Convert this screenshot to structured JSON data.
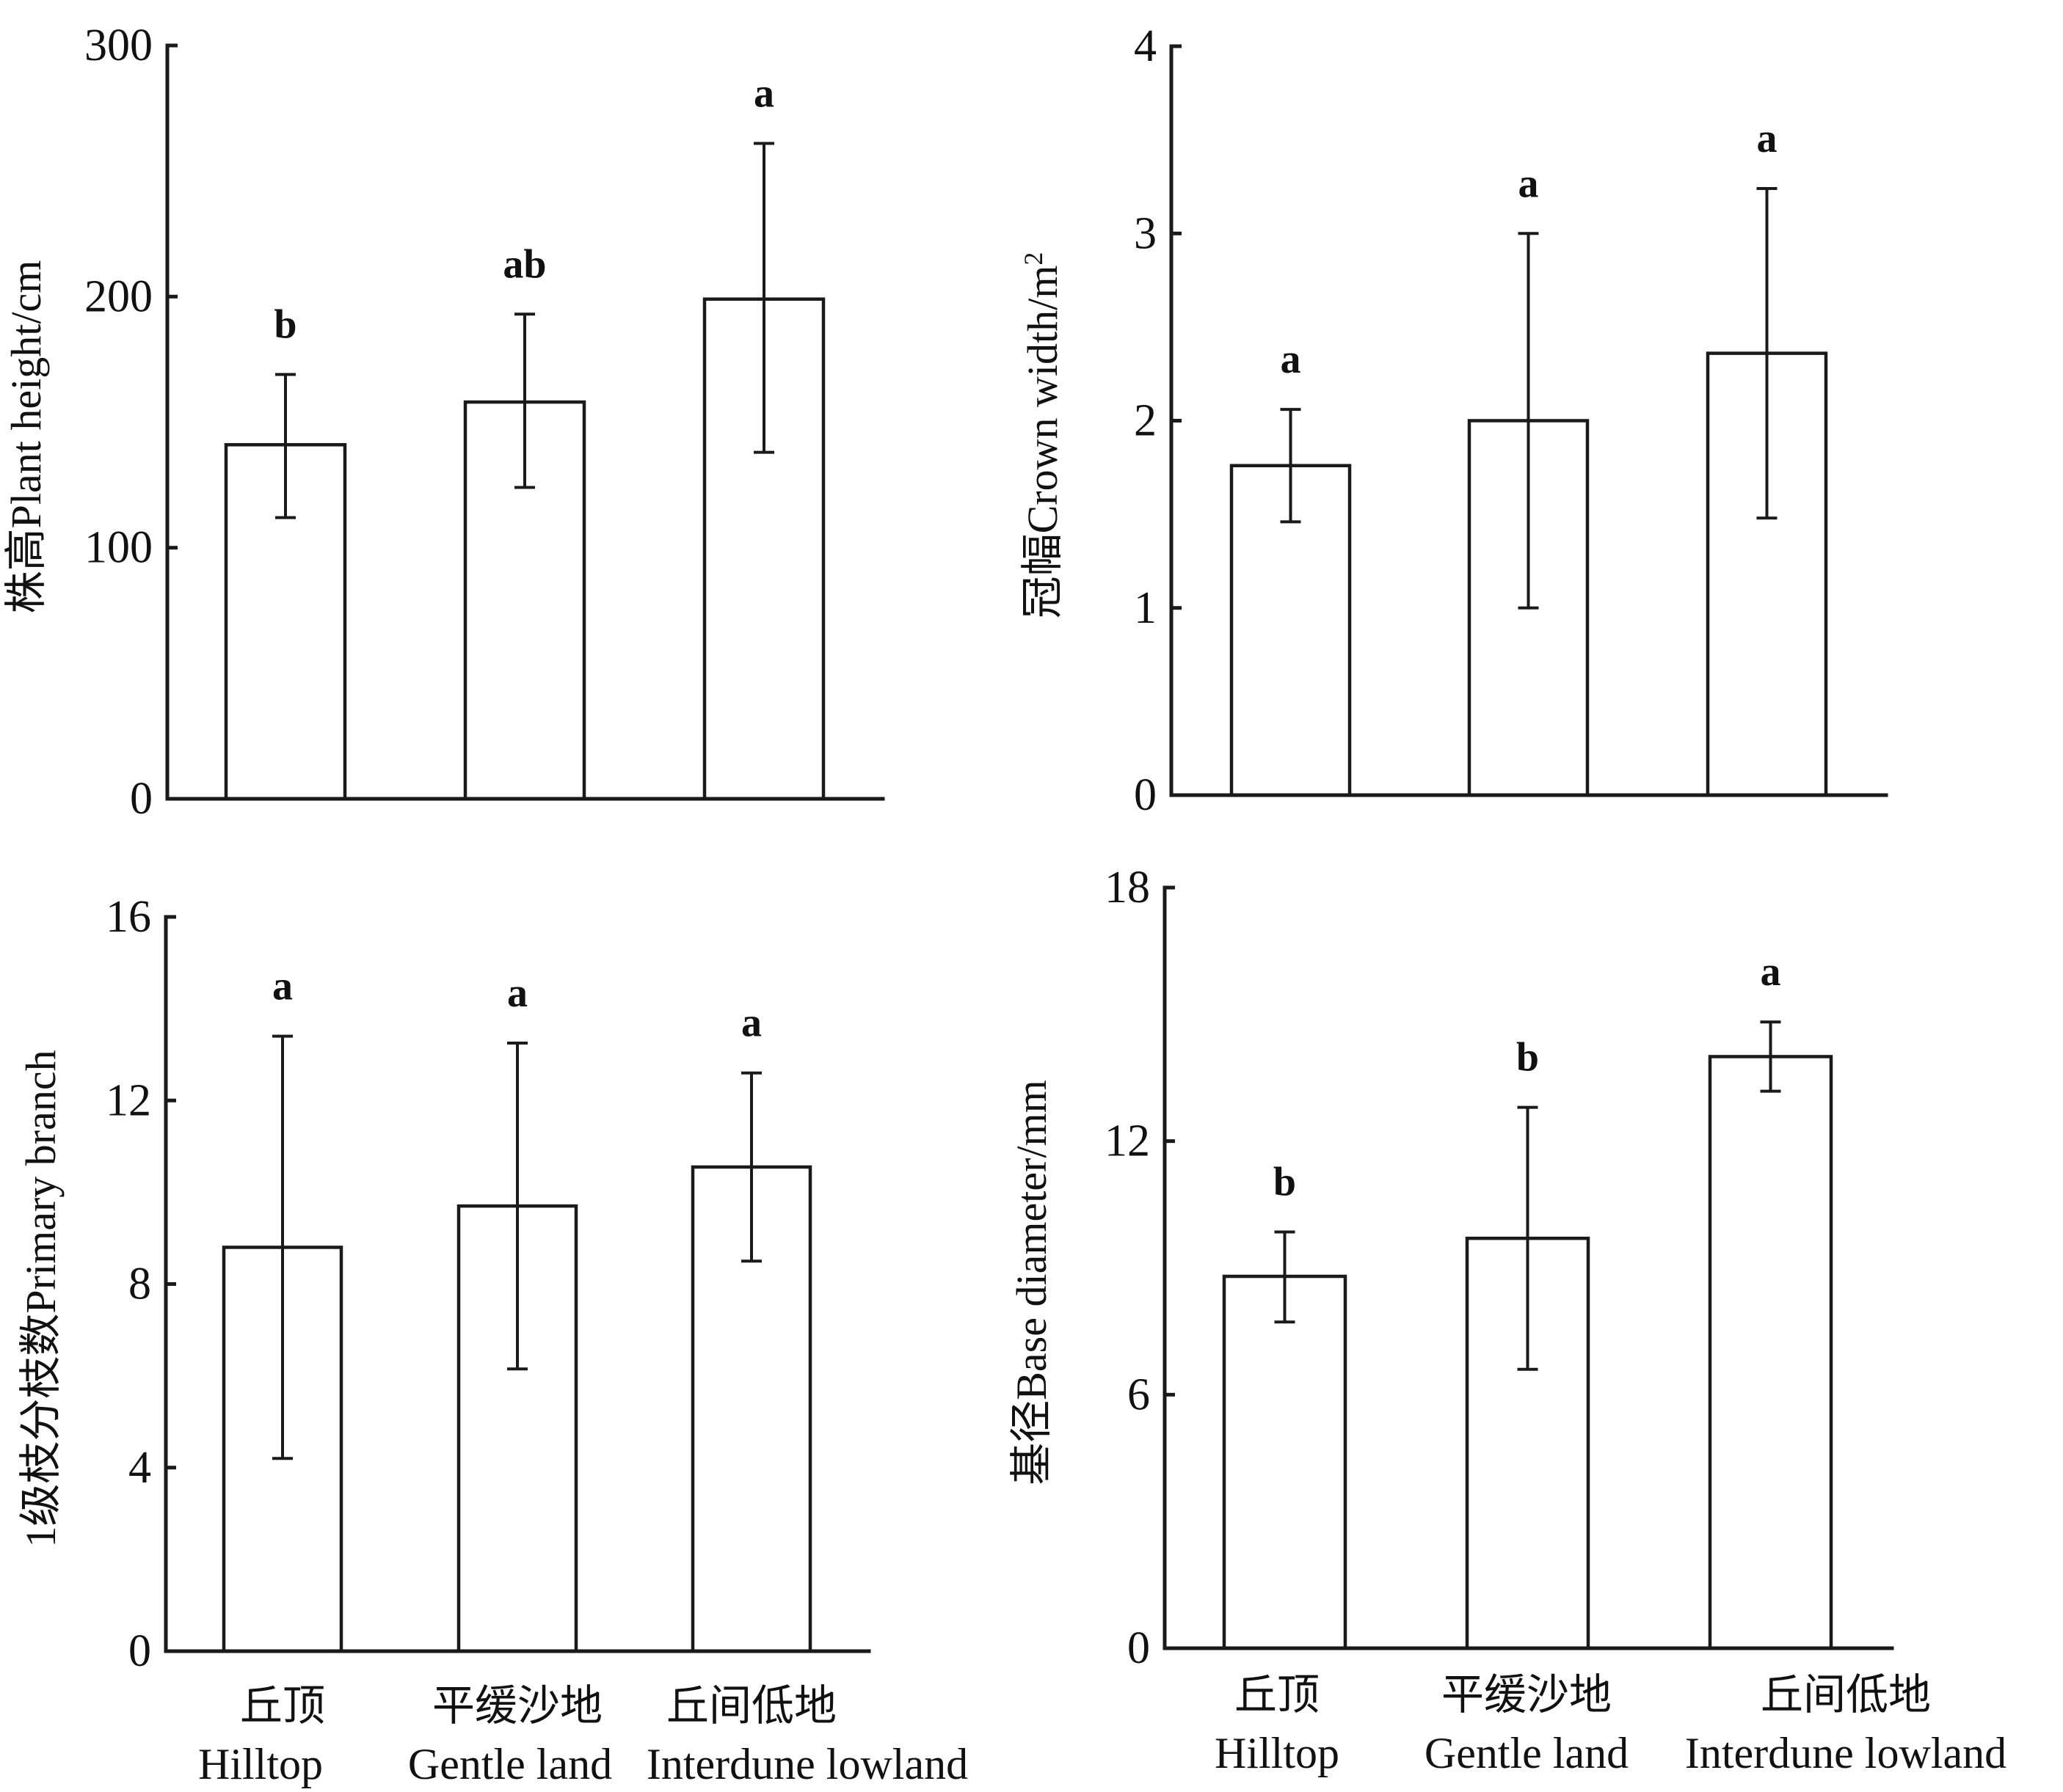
{
  "chart_data": [
    {
      "id": "plant-height",
      "type": "bar",
      "title": "",
      "xlabel": "",
      "ylabel": "株高Plant height/cm",
      "ylabel_sup": "",
      "ylim": [
        0,
        300
      ],
      "yticks": [
        0,
        100,
        200,
        300
      ],
      "grid": false,
      "legend": "none",
      "categories": [
        "Hilltop",
        "Gentle land",
        "Interdune lowland"
      ],
      "values": [
        141,
        158,
        199
      ],
      "error_upper": [
        169,
        193,
        261
      ],
      "error_lower": [
        112,
        124,
        138
      ],
      "significance": [
        "b",
        "ab",
        "a"
      ]
    },
    {
      "id": "crown-width",
      "type": "bar",
      "title": "",
      "xlabel": "",
      "ylabel": "冠幅Crown width/m",
      "ylabel_sup": "2",
      "ylim": [
        0,
        4
      ],
      "yticks": [
        0,
        1,
        2,
        3,
        4
      ],
      "grid": false,
      "legend": "none",
      "categories": [
        "Hilltop",
        "Gentle land",
        "Interdune lowland"
      ],
      "values": [
        1.76,
        2.0,
        2.36
      ],
      "error_upper": [
        2.06,
        3.0,
        3.24
      ],
      "error_lower": [
        1.46,
        1.0,
        1.48
      ],
      "significance": [
        "a",
        "a",
        "a"
      ]
    },
    {
      "id": "primary-branch",
      "type": "bar",
      "title": "",
      "xlabel": "",
      "ylabel": "1级枝分枝数Primary branch",
      "ylabel_sup": "",
      "ylim": [
        0,
        16
      ],
      "yticks": [
        0,
        4,
        8,
        12,
        16
      ],
      "grid": false,
      "legend": "none",
      "categories": [
        "Hilltop",
        "Gentle land",
        "Interdune lowland"
      ],
      "values": [
        8.8,
        9.7,
        10.55
      ],
      "error_upper": [
        13.4,
        13.25,
        12.6
      ],
      "error_lower": [
        4.2,
        6.15,
        8.5
      ],
      "significance": [
        "a",
        "a",
        "a"
      ]
    },
    {
      "id": "base-diameter",
      "type": "bar",
      "title": "",
      "xlabel": "",
      "ylabel": "基径Base diameter/mm",
      "ylabel_sup": "",
      "ylim": [
        0,
        18
      ],
      "yticks": [
        0,
        6,
        12,
        18
      ],
      "grid": false,
      "legend": "none",
      "categories": [
        "Hilltop",
        "Gentle land",
        "Interdune lowland"
      ],
      "values": [
        8.8,
        9.7,
        14.0
      ],
      "error_upper": [
        9.85,
        12.8,
        14.82
      ],
      "error_lower": [
        7.72,
        6.6,
        13.18
      ],
      "significance": [
        "b",
        "b",
        "a"
      ]
    }
  ],
  "x_categories": {
    "cn": [
      "丘顶",
      "平缓沙地",
      "丘间低地"
    ],
    "en": [
      "Hilltop",
      "Gentle land",
      "Interdune lowland"
    ]
  },
  "colors": {
    "ink": "#1a1a1a",
    "bar_fill": "#ffffff",
    "background": "#ffffff"
  }
}
